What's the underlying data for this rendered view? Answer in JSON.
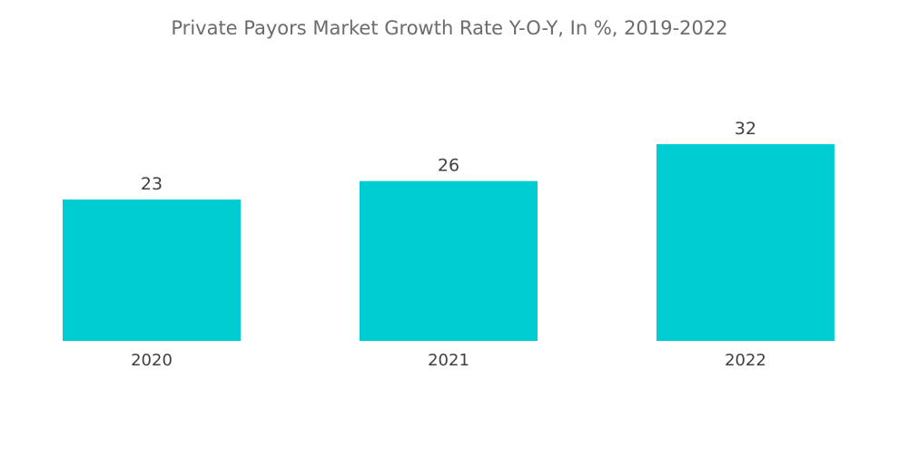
{
  "chart_data": {
    "type": "bar",
    "title": "Private Payors Market Growth Rate Y-O-Y, In %, 2019-2022",
    "categories": [
      "2020",
      "2021",
      "2022"
    ],
    "values": [
      23,
      26,
      32
    ],
    "xlabel": "",
    "ylabel": "",
    "ylim": [
      0,
      32
    ],
    "grid": false,
    "legend": "none",
    "bar_color": "#00cdd2"
  }
}
